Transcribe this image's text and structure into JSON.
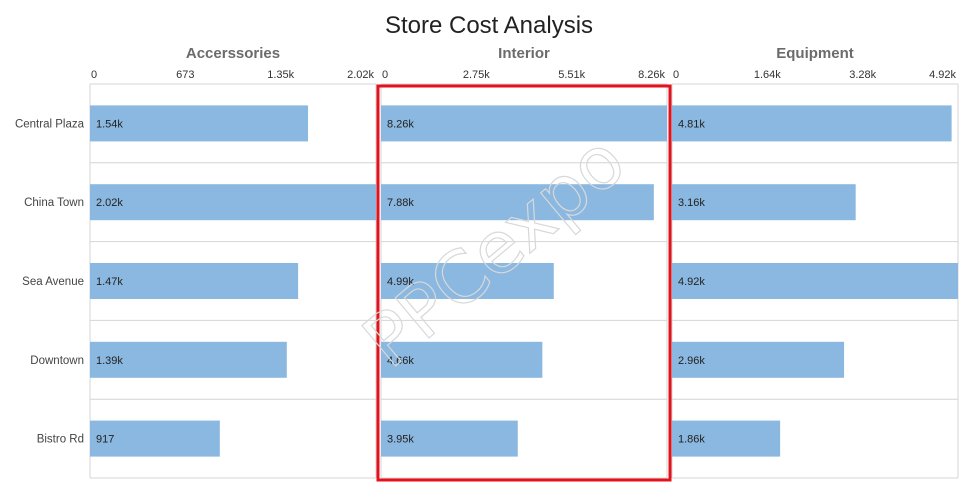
{
  "chart_data": {
    "type": "bar",
    "orientation": "horizontal",
    "title": "Store Cost Analysis",
    "categories": [
      "Central Plaza",
      "China Town",
      "Sea Avenue",
      "Downtown",
      "Bistro Rd"
    ],
    "panels": [
      {
        "name": "Accerssories",
        "values": [
          1540,
          2020,
          1470,
          1390,
          917
        ],
        "labels": [
          "1.54k",
          "2.02k",
          "1.47k",
          "1.39k",
          "917"
        ],
        "xlim": [
          0,
          2020
        ],
        "ticks": [
          "0",
          "673",
          "1.35k",
          "2.02k"
        ],
        "highlighted": false
      },
      {
        "name": "Interior",
        "values": [
          8260,
          7880,
          4990,
          4660,
          3950
        ],
        "labels": [
          "8.26k",
          "7.88k",
          "4.99k",
          "4.66k",
          "3.95k"
        ],
        "xlim": [
          0,
          8260
        ],
        "ticks": [
          "0",
          "2.75k",
          "5.51k",
          "8.26k"
        ],
        "highlighted": true
      },
      {
        "name": "Equipment",
        "values": [
          4810,
          3160,
          4920,
          2960,
          1860
        ],
        "labels": [
          "4.81k",
          "3.16k",
          "4.92k",
          "2.96k",
          "1.86k"
        ],
        "xlim": [
          0,
          4920
        ],
        "ticks": [
          "0",
          "1.64k",
          "3.28k",
          "4.92k"
        ],
        "highlighted": false
      }
    ],
    "bar_color": "#8bb8e0",
    "highlight_color": "#e4121c",
    "grid": true,
    "legend": "none"
  },
  "watermark": "PPCexpo"
}
